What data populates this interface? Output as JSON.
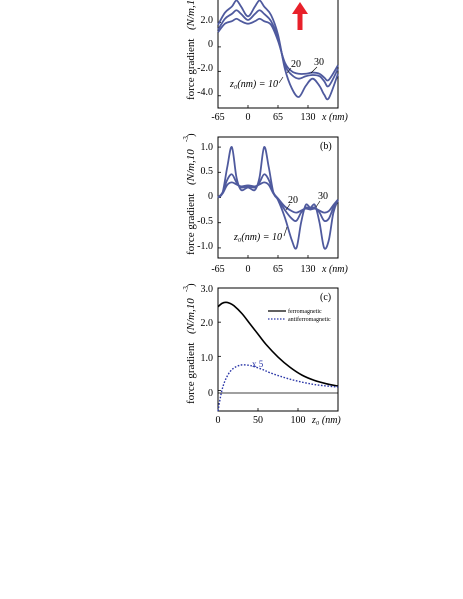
{
  "colors": {
    "curve": "#4f5a9e",
    "ferro": "#000000",
    "antiferro": "#2b37a8",
    "arrow": "#e8202a",
    "axis": "#000000"
  },
  "chart_data": [
    {
      "type": "line",
      "panel_label": "",
      "ylabel": "force gradient",
      "yunit_visible": "(N/m,1",
      "xlabel": "x (nm)",
      "xticks": [
        "-65",
        "0",
        "65",
        "130"
      ],
      "yticks": [
        "2.0",
        "0",
        "-2.0",
        "-4.0"
      ],
      "xlim": [
        -65,
        195
      ],
      "ylim": [
        -5,
        4
      ],
      "annotation_prefix": "z₀(nm) = 10",
      "series_labels": [
        "20",
        "30"
      ],
      "series": [
        {
          "name": "10",
          "x": [
            -65,
            -50,
            -35,
            -25,
            -15,
            0,
            15,
            25,
            35,
            50,
            65,
            80,
            95,
            110,
            125,
            140,
            155,
            165,
            175,
            195
          ],
          "y": [
            1.8,
            2.8,
            3.3,
            3.8,
            3.3,
            2.5,
            3.3,
            3.8,
            3.3,
            2.6,
            1.0,
            -1.8,
            -3.4,
            -4.1,
            -3.2,
            -2.6,
            -3.2,
            -3.9,
            -4.2,
            -2.2
          ]
        },
        {
          "name": "20",
          "x": [
            -65,
            -50,
            -35,
            -25,
            -15,
            0,
            15,
            25,
            35,
            50,
            65,
            80,
            95,
            110,
            125,
            140,
            155,
            165,
            175,
            195
          ],
          "y": [
            1.4,
            2.3,
            2.7,
            3.0,
            2.7,
            2.2,
            2.7,
            3.0,
            2.7,
            2.1,
            0.7,
            -1.5,
            -2.3,
            -2.6,
            -2.4,
            -2.3,
            -2.4,
            -2.8,
            -3.2,
            -1.8
          ]
        },
        {
          "name": "30",
          "x": [
            -65,
            -50,
            -35,
            -25,
            -15,
            0,
            15,
            25,
            35,
            50,
            65,
            80,
            95,
            110,
            125,
            140,
            155,
            165,
            175,
            195
          ],
          "y": [
            1.2,
            1.9,
            2.1,
            2.3,
            2.1,
            1.9,
            2.1,
            2.3,
            2.1,
            1.8,
            0.5,
            -1.3,
            -2.0,
            -2.2,
            -2.2,
            -2.1,
            -2.2,
            -2.5,
            -2.7,
            -1.5
          ]
        }
      ]
    },
    {
      "type": "line",
      "panel_label": "(b)",
      "ylabel": "force gradient",
      "yunit_visible": "(N/m,10",
      "yunit_exp": "-3",
      "xlabel": "x (nm)",
      "xticks": [
        "-65",
        "0",
        "65",
        "130"
      ],
      "yticks": [
        "1.0",
        "0.5",
        "0",
        "-0.5",
        "-1.0"
      ],
      "xlim": [
        -65,
        195
      ],
      "ylim": [
        -1.2,
        1.2
      ],
      "annotation_prefix": "z₀(nm) = 10",
      "series_labels": [
        "20",
        "30"
      ],
      "series": [
        {
          "name": "10",
          "x": [
            -65,
            -55,
            -45,
            -35,
            -25,
            -15,
            0,
            15,
            25,
            35,
            45,
            55,
            65,
            80,
            95,
            105,
            115,
            125,
            135,
            145,
            155,
            165,
            175,
            185,
            195
          ],
          "y": [
            0.0,
            0.1,
            0.6,
            1.0,
            0.4,
            0.15,
            0.2,
            0.15,
            0.4,
            1.0,
            0.6,
            0.1,
            -0.05,
            -0.4,
            -0.85,
            -1.0,
            -0.5,
            -0.15,
            -0.2,
            -0.15,
            -0.5,
            -1.0,
            -0.85,
            -0.3,
            -0.05
          ]
        },
        {
          "name": "20",
          "x": [
            -65,
            -55,
            -45,
            -35,
            -25,
            -15,
            0,
            15,
            25,
            35,
            45,
            55,
            65,
            80,
            95,
            105,
            115,
            125,
            135,
            145,
            155,
            165,
            175,
            185,
            195
          ],
          "y": [
            0.0,
            0.1,
            0.35,
            0.46,
            0.3,
            0.2,
            0.22,
            0.2,
            0.3,
            0.46,
            0.35,
            0.1,
            -0.03,
            -0.25,
            -0.42,
            -0.46,
            -0.3,
            -0.2,
            -0.22,
            -0.2,
            -0.3,
            -0.46,
            -0.42,
            -0.2,
            -0.05
          ]
        },
        {
          "name": "30",
          "x": [
            -65,
            -55,
            -45,
            -35,
            -25,
            -15,
            0,
            15,
            25,
            35,
            45,
            55,
            65,
            80,
            95,
            105,
            115,
            125,
            135,
            145,
            155,
            165,
            175,
            185,
            195
          ],
          "y": [
            0.0,
            0.08,
            0.25,
            0.3,
            0.26,
            0.22,
            0.24,
            0.22,
            0.26,
            0.3,
            0.25,
            0.08,
            -0.02,
            -0.18,
            -0.27,
            -0.3,
            -0.26,
            -0.22,
            -0.24,
            -0.22,
            -0.26,
            -0.3,
            -0.27,
            -0.15,
            -0.04
          ]
        }
      ]
    },
    {
      "type": "line",
      "panel_label": "(c)",
      "ylabel": "force gradient",
      "yunit_visible": "(N/m,10",
      "yunit_exp": "-3",
      "xlabel": "z₀ (nm)",
      "xticks": [
        "0",
        "50",
        "100"
      ],
      "yticks": [
        "3.0",
        "2.0",
        "1.0",
        "0"
      ],
      "xlim": [
        0,
        150
      ],
      "ylim": [
        -0.6,
        3.0
      ],
      "annotation": "x 5",
      "legend_position": "top-right",
      "series": [
        {
          "name": "ferromagnetic",
          "style": "solid",
          "x": [
            0,
            5,
            10,
            15,
            20,
            30,
            40,
            50,
            60,
            75,
            90,
            105,
            120,
            135,
            150
          ],
          "y": [
            2.45,
            2.55,
            2.58,
            2.55,
            2.48,
            2.25,
            1.95,
            1.65,
            1.35,
            0.98,
            0.68,
            0.45,
            0.3,
            0.2,
            0.13
          ]
        },
        {
          "name": "antiferromagnetic",
          "style": "dotted",
          "x": [
            0,
            3,
            6,
            10,
            15,
            20,
            25,
            30,
            38,
            45,
            55,
            65,
            80,
            95,
            110,
            125,
            150
          ],
          "y": [
            -0.6,
            -0.2,
            0.1,
            0.35,
            0.55,
            0.66,
            0.72,
            0.75,
            0.74,
            0.7,
            0.62,
            0.52,
            0.4,
            0.3,
            0.22,
            0.16,
            0.1
          ]
        }
      ]
    }
  ]
}
